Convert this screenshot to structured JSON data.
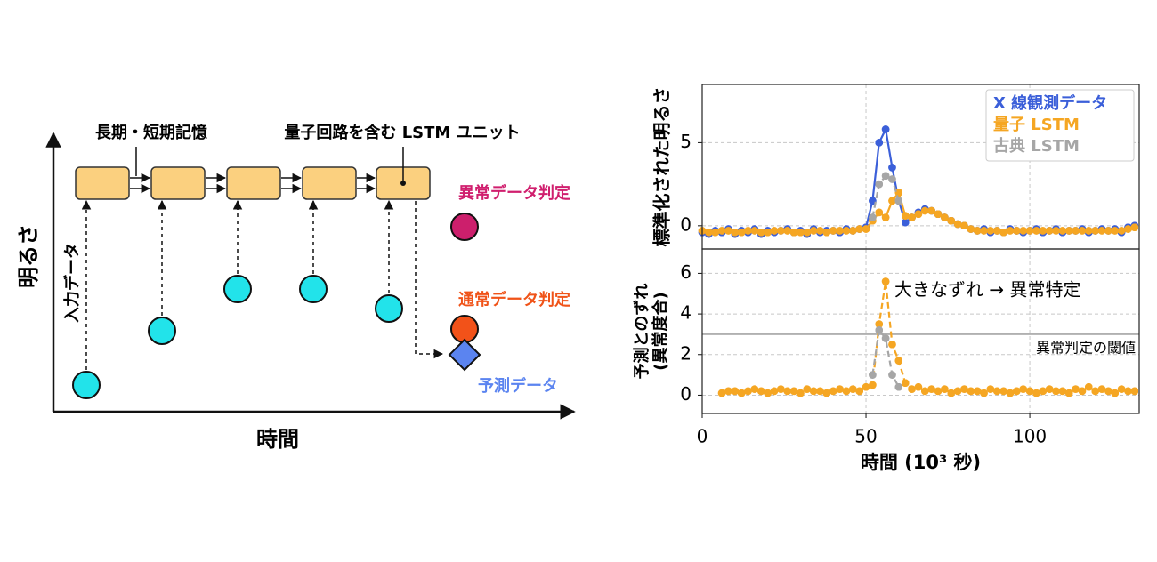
{
  "diagram": {
    "y_axis_label": "明るさ",
    "x_axis_label": "時間",
    "memory_label": "長期・短期記憶",
    "unit_label": "量子回路を含む LSTM ユニット",
    "input_label": "入力データ",
    "anomaly_label": "異常データ判定",
    "normal_label": "通常データ判定",
    "prediction_label": "予測データ"
  },
  "chart_data": [
    {
      "type": "line",
      "ylabel": "標準化された明るさ",
      "x": [
        0,
        2,
        4,
        6,
        8,
        10,
        12,
        14,
        16,
        18,
        20,
        22,
        24,
        26,
        28,
        30,
        32,
        34,
        36,
        38,
        40,
        42,
        44,
        46,
        48,
        50,
        52,
        54,
        56,
        58,
        60,
        62,
        64,
        66,
        68,
        70,
        72,
        74,
        76,
        78,
        80,
        82,
        84,
        86,
        88,
        90,
        92,
        94,
        96,
        98,
        100,
        102,
        104,
        106,
        108,
        110,
        112,
        114,
        116,
        118,
        120,
        122,
        124,
        126,
        128,
        130,
        132
      ],
      "series": [
        {
          "name": "X 線観測データ",
          "color": "#3b5fd9",
          "linestyle": "solid",
          "values": [
            -0.4,
            -0.5,
            -0.3,
            -0.4,
            -0.2,
            -0.5,
            -0.3,
            -0.4,
            -0.2,
            -0.5,
            -0.3,
            -0.4,
            -0.3,
            -0.2,
            -0.4,
            -0.3,
            -0.5,
            -0.2,
            -0.4,
            -0.3,
            -0.3,
            -0.4,
            -0.2,
            -0.3,
            -0.2,
            -0.1,
            1.5,
            5.0,
            5.8,
            3.5,
            1.5,
            0.2,
            0.5,
            0.8,
            1.0,
            0.9,
            0.7,
            0.5,
            0.3,
            0.1,
            0.0,
            -0.2,
            -0.3,
            -0.2,
            -0.4,
            -0.3,
            -0.4,
            -0.2,
            -0.3,
            -0.4,
            -0.3,
            -0.2,
            -0.4,
            -0.3,
            -0.2,
            -0.4,
            -0.3,
            -0.3,
            -0.2,
            -0.4,
            -0.3,
            -0.2,
            -0.3,
            -0.2,
            -0.4,
            -0.1,
            0.0
          ]
        },
        {
          "name": "量子 LSTM",
          "color": "#f5a623",
          "linestyle": "solid",
          "values": [
            -0.3,
            -0.4,
            -0.4,
            -0.3,
            -0.3,
            -0.4,
            -0.4,
            -0.3,
            -0.3,
            -0.4,
            -0.4,
            -0.3,
            -0.3,
            -0.3,
            -0.4,
            -0.4,
            -0.4,
            -0.3,
            -0.3,
            -0.4,
            -0.3,
            -0.3,
            -0.3,
            -0.3,
            -0.2,
            -0.2,
            0.3,
            0.8,
            0.5,
            1.5,
            2.0,
            0.6,
            0.5,
            0.7,
            0.9,
            0.9,
            0.7,
            0.5,
            0.3,
            0.1,
            0.0,
            -0.2,
            -0.3,
            -0.3,
            -0.3,
            -0.3,
            -0.4,
            -0.3,
            -0.3,
            -0.3,
            -0.3,
            -0.3,
            -0.3,
            -0.3,
            -0.3,
            -0.3,
            -0.3,
            -0.3,
            -0.3,
            -0.3,
            -0.3,
            -0.3,
            -0.3,
            -0.3,
            -0.3,
            -0.2,
            -0.1
          ]
        },
        {
          "name": "古典 LSTM",
          "color": "#a6a6a6",
          "linestyle": "dashed",
          "values": [
            null,
            null,
            null,
            null,
            null,
            null,
            null,
            null,
            null,
            null,
            null,
            null,
            null,
            null,
            null,
            null,
            null,
            null,
            null,
            null,
            null,
            null,
            null,
            null,
            null,
            null,
            0.5,
            2.5,
            3.0,
            2.8,
            1.5,
            null,
            null,
            null,
            null,
            null,
            null,
            null,
            null,
            null,
            null,
            null,
            null,
            null,
            null,
            null,
            null,
            null,
            null,
            null,
            null,
            null,
            null,
            null,
            null,
            null,
            null,
            null,
            null,
            null,
            null,
            null,
            null,
            null,
            null,
            null,
            null
          ]
        }
      ],
      "xlim": [
        0,
        133.4
      ],
      "xticks": [
        0,
        50,
        100
      ],
      "show_xtick_labels": false,
      "ylim": [
        -1.4,
        8.5
      ],
      "yticks": [
        0,
        5
      ],
      "grid": true,
      "legend": "upper right"
    },
    {
      "type": "line",
      "ylabel": [
        "予測とのずれ",
        "(異常度合)"
      ],
      "xlabel": "時間 (10³ 秒)",
      "x": [
        0,
        2,
        4,
        6,
        8,
        10,
        12,
        14,
        16,
        18,
        20,
        22,
        24,
        26,
        28,
        30,
        32,
        34,
        36,
        38,
        40,
        42,
        44,
        46,
        48,
        50,
        52,
        54,
        56,
        58,
        60,
        62,
        64,
        66,
        68,
        70,
        72,
        74,
        76,
        78,
        80,
        82,
        84,
        86,
        88,
        90,
        92,
        94,
        96,
        98,
        100,
        102,
        104,
        106,
        108,
        110,
        112,
        114,
        116,
        118,
        120,
        122,
        124,
        126,
        128,
        130,
        132
      ],
      "series": [
        {
          "name": "量子 LSTM",
          "color": "#f5a623",
          "linestyle": "dashed",
          "values": [
            null,
            null,
            null,
            0.1,
            0.2,
            0.2,
            0.1,
            0.2,
            0.3,
            0.2,
            0.1,
            0.2,
            0.3,
            0.2,
            0.2,
            0.1,
            0.3,
            0.2,
            0.2,
            0.1,
            0.2,
            0.3,
            0.2,
            0.3,
            0.2,
            0.4,
            0.5,
            3.5,
            5.6,
            2.5,
            1.7,
            0.6,
            0.3,
            0.4,
            0.2,
            0.3,
            0.2,
            0.3,
            0.1,
            0.2,
            0.3,
            0.2,
            0.2,
            0.1,
            0.3,
            0.2,
            0.2,
            0.1,
            0.2,
            0.3,
            0.2,
            0.1,
            0.2,
            0.3,
            0.2,
            0.2,
            0.1,
            0.3,
            0.2,
            0.4,
            0.2,
            0.3,
            0.2,
            0.1,
            0.3,
            0.2,
            0.2
          ]
        },
        {
          "name": "古典 LSTM",
          "color": "#a6a6a6",
          "linestyle": "dashed",
          "values": [
            null,
            null,
            null,
            null,
            null,
            null,
            null,
            null,
            null,
            null,
            null,
            null,
            null,
            null,
            null,
            null,
            null,
            null,
            null,
            null,
            null,
            null,
            null,
            null,
            null,
            null,
            1.0,
            3.2,
            2.8,
            1.0,
            0.4,
            null,
            null,
            null,
            null,
            null,
            null,
            null,
            null,
            null,
            null,
            null,
            null,
            null,
            null,
            null,
            null,
            null,
            null,
            null,
            null,
            null,
            null,
            null,
            null,
            null,
            null,
            null,
            null,
            null,
            null,
            null,
            null,
            null,
            null,
            null,
            null
          ]
        }
      ],
      "xlim": [
        0,
        133.4
      ],
      "xticks": [
        0,
        50,
        100
      ],
      "show_xtick_labels": true,
      "ylim": [
        -0.9,
        7.2
      ],
      "yticks": [
        0,
        2,
        4,
        6
      ],
      "grid": true,
      "threshold": 3,
      "threshold_label": "異常判定の閾値",
      "annotation": "大きなずれ → 異常特定"
    }
  ]
}
